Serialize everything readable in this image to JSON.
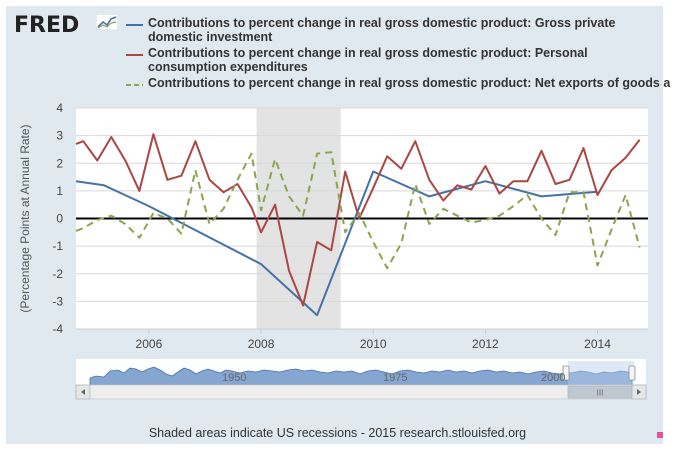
{
  "logo": {
    "text": "FRED"
  },
  "legend": [
    {
      "text": "Contributions to percent change in real gross domestic product: Gross private domestic investment",
      "color": "#4572a7",
      "dash": "solid"
    },
    {
      "text": "Contributions to percent change in real gross domestic product: Personal consumption expenditures",
      "color": "#aa4643",
      "dash": "solid"
    },
    {
      "text": "Contributions to percent change in real gross domestic product: Net exports of goods and services",
      "color": "#89a54e",
      "dash": "dashed"
    }
  ],
  "footer": "Shaded areas indicate US recessions - 2015 research.stlouisfed.org",
  "navigator": {
    "labels": [
      "1950",
      "1975",
      "2000"
    ],
    "scroll_thumb": "III"
  },
  "chart_data": {
    "type": "line",
    "title": "",
    "xlabel": "",
    "ylabel": "(Percentage Points at Annual Rate)",
    "xlim": [
      2004.7,
      2014.9
    ],
    "ylim": [
      -4,
      4
    ],
    "yticks": [
      "-4",
      "-3",
      "-2",
      "-1",
      "0",
      "1",
      "2",
      "3",
      "4"
    ],
    "xticks": [
      {
        "label": "2006",
        "value": 2006
      },
      {
        "label": "2008",
        "value": 2008
      },
      {
        "label": "2010",
        "value": 2010
      },
      {
        "label": "2012",
        "value": 2012
      },
      {
        "label": "2014",
        "value": 2014
      }
    ],
    "recession": {
      "start": 2007.92,
      "end": 2009.42
    },
    "series": [
      {
        "name": "Contributions to percent change in real gross domestic product: Gross private domestic investment",
        "color": "#4572a7",
        "x": [
          2004.7,
          2005.2,
          2006.0,
          2008.0,
          2009.0,
          2010.0,
          2011.0,
          2012.0,
          2013.0,
          2014.0
        ],
        "y": [
          1.35,
          1.2,
          0.45,
          -1.65,
          -3.5,
          1.7,
          0.8,
          1.35,
          0.8,
          0.97
        ]
      },
      {
        "name": "Contributions to percent change in real gross domestic product: Personal consumption expenditures",
        "color": "#aa4643",
        "x": [
          2004.7,
          2004.83,
          2005.08,
          2005.33,
          2005.58,
          2005.83,
          2006.08,
          2006.33,
          2006.58,
          2006.83,
          2007.08,
          2007.33,
          2007.58,
          2007.83,
          2008.0,
          2008.25,
          2008.5,
          2008.75,
          2009.0,
          2009.25,
          2009.5,
          2009.75,
          2010.0,
          2010.25,
          2010.5,
          2010.75,
          2011.0,
          2011.25,
          2011.5,
          2011.75,
          2012.0,
          2012.25,
          2012.5,
          2012.75,
          2013.0,
          2013.25,
          2013.5,
          2013.75,
          2014.0,
          2014.25,
          2014.5,
          2014.75
        ],
        "y": [
          2.7,
          2.8,
          2.1,
          2.95,
          2.1,
          1.0,
          3.05,
          1.4,
          1.55,
          2.8,
          1.4,
          0.95,
          1.25,
          0.4,
          -0.5,
          0.5,
          -1.9,
          -3.15,
          -0.85,
          -1.15,
          1.7,
          0.0,
          1.1,
          2.25,
          1.8,
          2.8,
          1.4,
          0.65,
          1.2,
          1.05,
          1.9,
          0.9,
          1.35,
          1.35,
          2.45,
          1.25,
          1.4,
          2.55,
          0.85,
          1.75,
          2.2,
          2.85
        ]
      },
      {
        "name": "Contributions to percent change in real gross domestic product: Net exports of goods and services",
        "color": "#89a54e",
        "x": [
          2004.7,
          2004.83,
          2005.08,
          2005.33,
          2005.58,
          2005.83,
          2006.08,
          2006.33,
          2006.58,
          2006.83,
          2007.08,
          2007.33,
          2007.58,
          2007.83,
          2008.0,
          2008.25,
          2008.5,
          2008.75,
          2009.0,
          2009.25,
          2009.5,
          2009.75,
          2010.0,
          2010.25,
          2010.5,
          2010.75,
          2011.0,
          2011.25,
          2011.5,
          2011.75,
          2012.0,
          2012.25,
          2012.5,
          2012.75,
          2013.0,
          2013.25,
          2013.5,
          2013.75,
          2014.0,
          2014.25,
          2014.5,
          2014.75
        ],
        "y": [
          -0.45,
          -0.35,
          -0.05,
          0.1,
          -0.2,
          -0.7,
          0.2,
          0.0,
          -0.55,
          1.75,
          -0.2,
          0.35,
          1.4,
          2.35,
          0.3,
          2.15,
          0.8,
          0.1,
          2.35,
          2.4,
          -0.5,
          0.2,
          -0.85,
          -1.8,
          -0.9,
          1.25,
          -0.2,
          0.35,
          0.1,
          -0.15,
          -0.05,
          0.1,
          0.45,
          0.85,
          0.0,
          -0.6,
          0.95,
          0.95,
          -1.7,
          -0.4,
          0.85,
          -1.05
        ]
      }
    ]
  }
}
